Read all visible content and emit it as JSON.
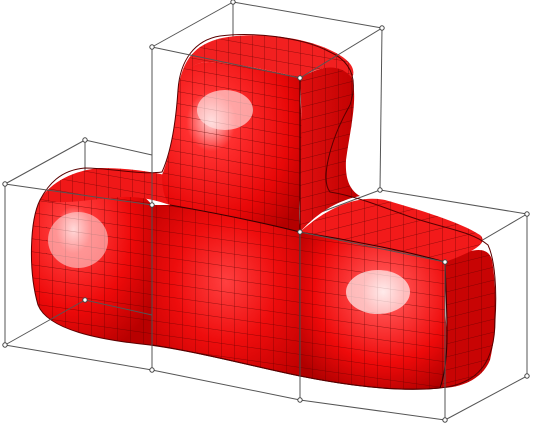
{
  "scene": {
    "subject": "subdivision-surface-t-shape",
    "colors": {
      "background": "#ffffff",
      "surface": "#ee0a0a",
      "surface_shadow": "#b80000",
      "highlight": "#ffd6d6",
      "mesh_lines": "#4a0000",
      "control_cage": "#555555",
      "control_points": "#444444"
    }
  }
}
